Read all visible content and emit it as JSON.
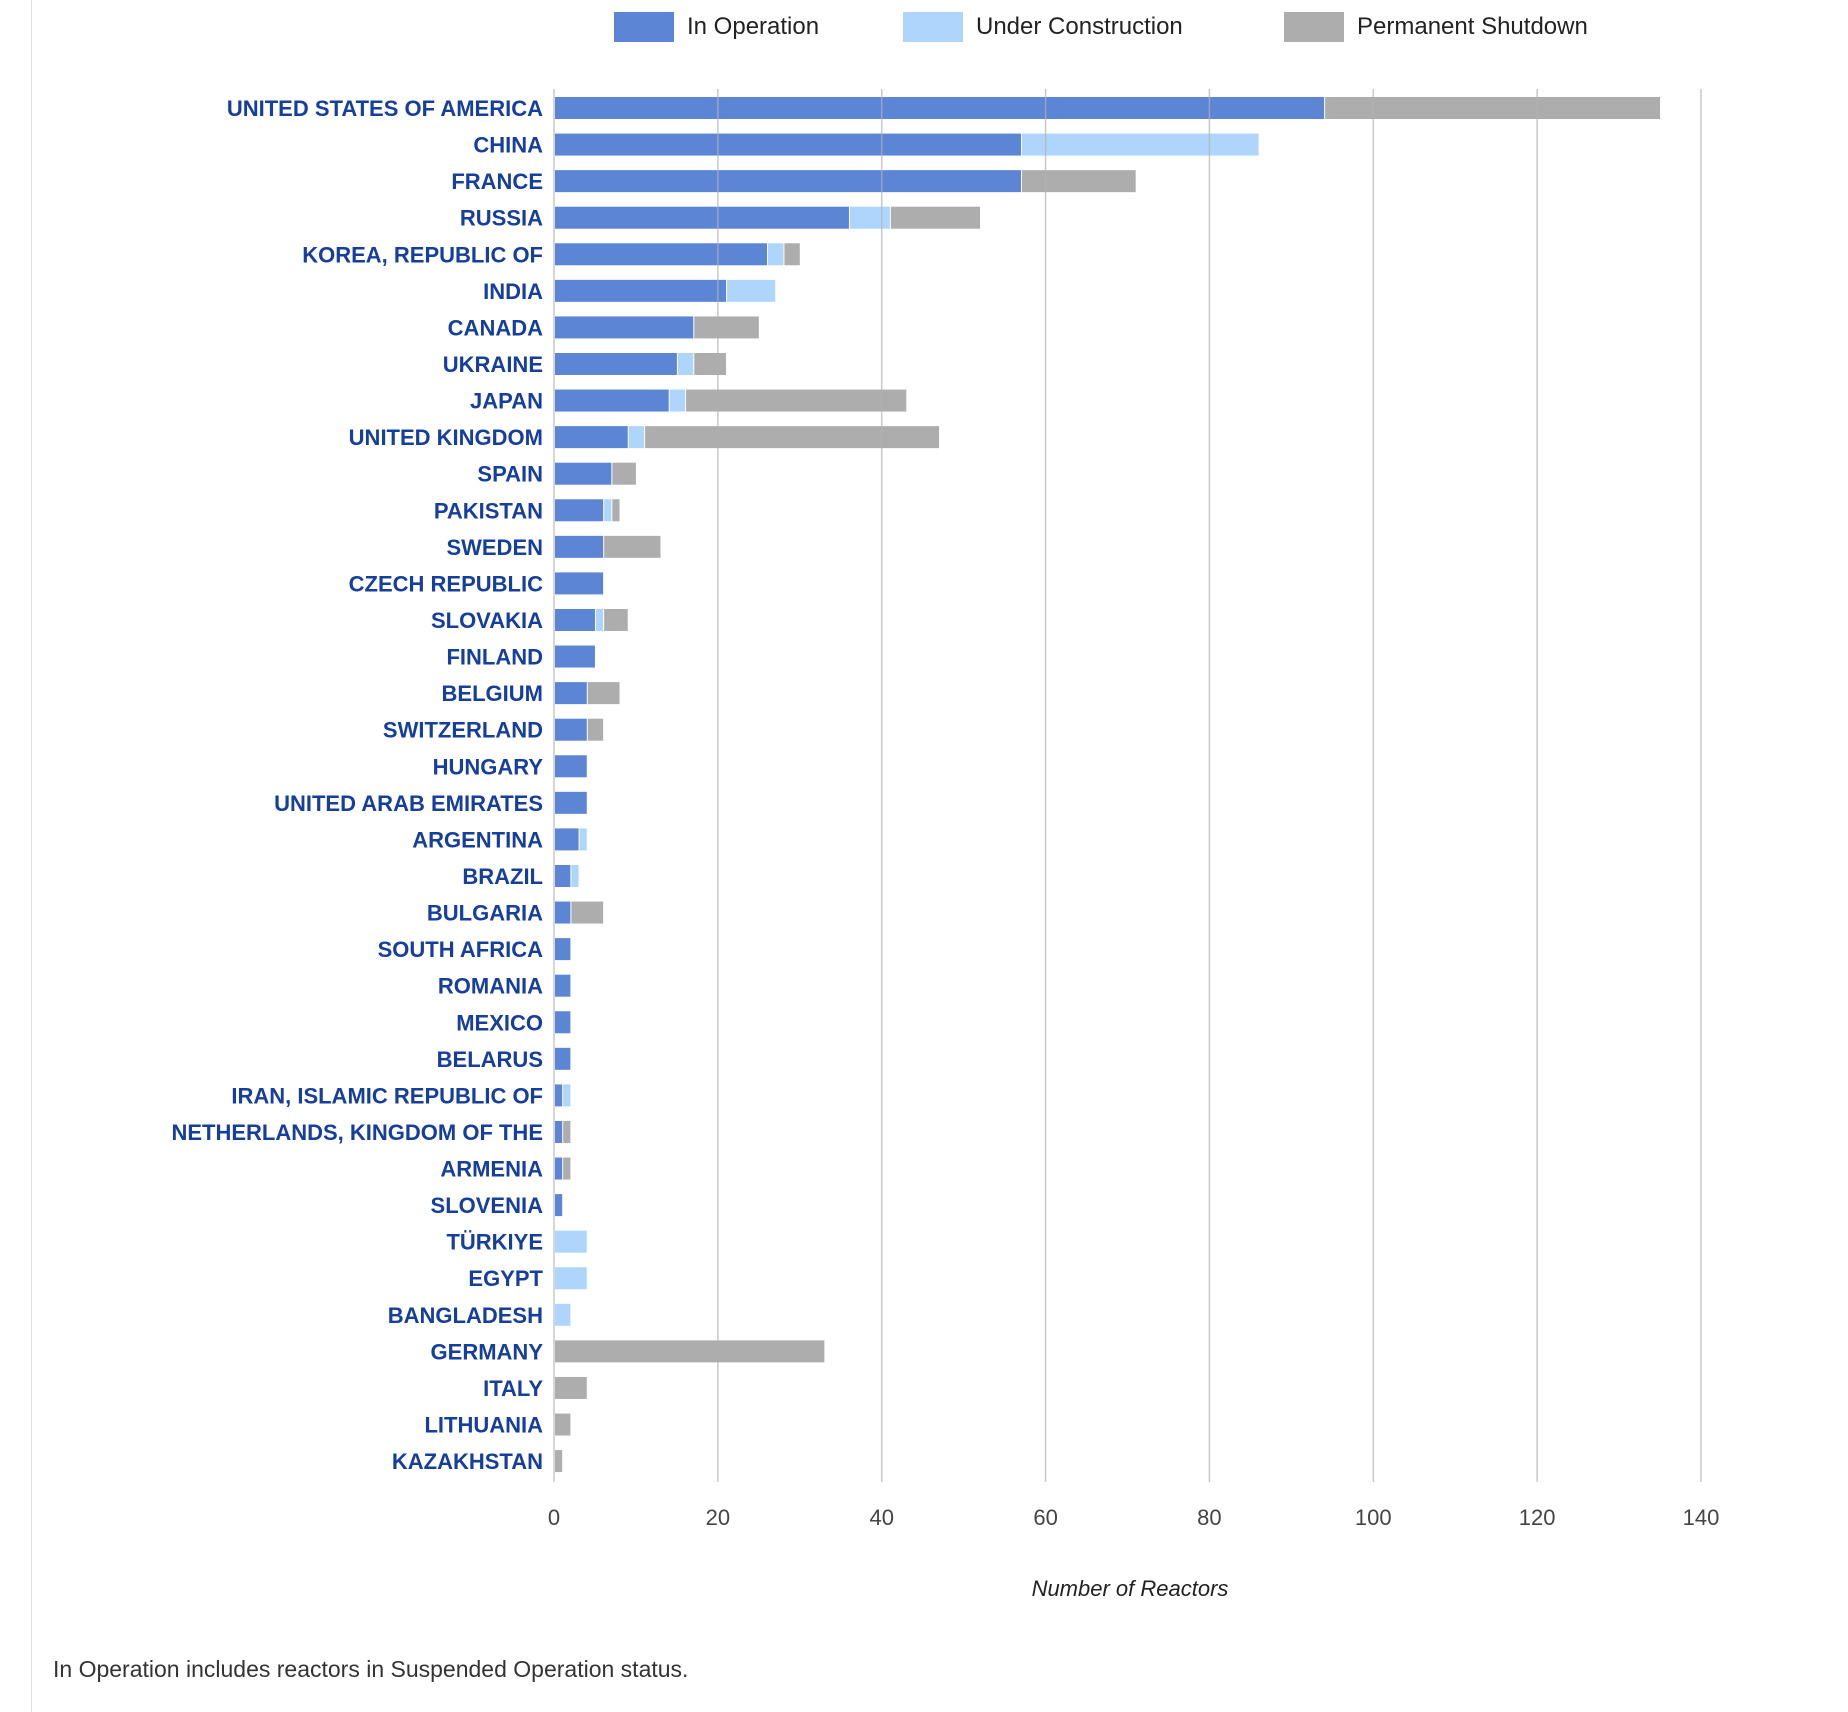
{
  "chart_data": {
    "type": "bar",
    "orientation": "horizontal",
    "stacked": true,
    "title": "",
    "xlabel": "Number of Reactors",
    "ylabel": "",
    "xlim": [
      0,
      140
    ],
    "xticks": [
      0,
      20,
      40,
      60,
      80,
      100,
      120,
      140
    ],
    "grid": true,
    "legend_position": "top",
    "categories": [
      "UNITED STATES OF AMERICA",
      "CHINA",
      "FRANCE",
      "RUSSIA",
      "KOREA, REPUBLIC OF",
      "INDIA",
      "CANADA",
      "UKRAINE",
      "JAPAN",
      "UNITED KINGDOM",
      "SPAIN",
      "PAKISTAN",
      "SWEDEN",
      "CZECH REPUBLIC",
      "SLOVAKIA",
      "FINLAND",
      "BELGIUM",
      "SWITZERLAND",
      "HUNGARY",
      "UNITED ARAB EMIRATES",
      "ARGENTINA",
      "BRAZIL",
      "BULGARIA",
      "SOUTH AFRICA",
      "ROMANIA",
      "MEXICO",
      "BELARUS",
      "IRAN, ISLAMIC REPUBLIC OF",
      "NETHERLANDS, KINGDOM OF THE",
      "ARMENIA",
      "SLOVENIA",
      "TÜRKIYE",
      "EGYPT",
      "BANGLADESH",
      "GERMANY",
      "ITALY",
      "LITHUANIA",
      "KAZAKHSTAN"
    ],
    "series": [
      {
        "name": "In Operation",
        "color": "#5c85d6",
        "values": [
          94,
          57,
          57,
          36,
          26,
          21,
          17,
          15,
          14,
          9,
          7,
          6,
          6,
          6,
          5,
          5,
          4,
          4,
          4,
          4,
          3,
          2,
          2,
          2,
          2,
          2,
          2,
          1,
          1,
          1,
          1,
          0,
          0,
          0,
          0,
          0,
          0,
          0
        ]
      },
      {
        "name": "Under Construction",
        "color": "#aed6fc",
        "values": [
          0,
          29,
          0,
          5,
          2,
          6,
          0,
          2,
          2,
          2,
          0,
          1,
          0,
          0,
          1,
          0,
          0,
          0,
          0,
          0,
          1,
          1,
          0,
          0,
          0,
          0,
          0,
          1,
          0,
          0,
          0,
          4,
          4,
          2,
          0,
          0,
          0,
          0
        ]
      },
      {
        "name": "Permanent Shutdown",
        "color": "#adadad",
        "values": [
          41,
          0,
          14,
          11,
          2,
          0,
          8,
          4,
          27,
          36,
          3,
          1,
          7,
          0,
          3,
          0,
          4,
          2,
          0,
          0,
          0,
          0,
          4,
          0,
          0,
          0,
          0,
          0,
          1,
          1,
          0,
          0,
          0,
          0,
          33,
          4,
          2,
          1
        ]
      }
    ]
  },
  "footnote": "In Operation includes reactors in Suspended Operation status."
}
